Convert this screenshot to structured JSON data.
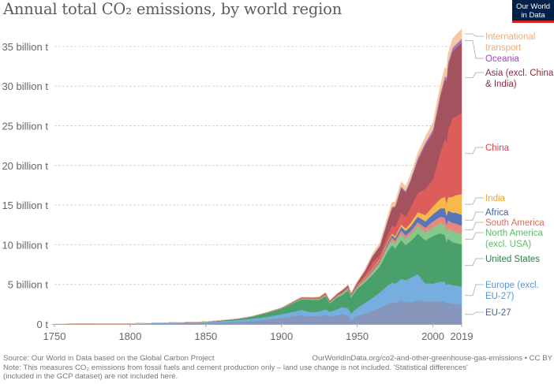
{
  "chart_data": {
    "type": "area",
    "stacked": true,
    "title": "Annual total CO₂ emissions, by world region",
    "xlabel": "",
    "ylabel": "",
    "ylim": [
      0,
      36.5
    ],
    "xlim": [
      1750,
      2019
    ],
    "grid": true,
    "unit": "billion t",
    "y_ticks": [
      {
        "value": 0,
        "label": "0 t"
      },
      {
        "value": 5,
        "label": "5 billion t"
      },
      {
        "value": 10,
        "label": "10 billion t"
      },
      {
        "value": 15,
        "label": "15 billion t"
      },
      {
        "value": 20,
        "label": "20 billion t"
      },
      {
        "value": 25,
        "label": "25 billion t"
      },
      {
        "value": 30,
        "label": "30 billion t"
      },
      {
        "value": 35,
        "label": "35 billion t"
      }
    ],
    "x_ticks": [
      {
        "value": 1750,
        "label": "1750"
      },
      {
        "value": 1800,
        "label": "1800"
      },
      {
        "value": 1850,
        "label": "1850"
      },
      {
        "value": 1900,
        "label": "1900"
      },
      {
        "value": 1950,
        "label": "1950"
      },
      {
        "value": 2000,
        "label": "2000"
      },
      {
        "value": 2019,
        "label": "2019"
      }
    ],
    "x": [
      1750,
      1800,
      1850,
      1870,
      1880,
      1890,
      1900,
      1910,
      1913,
      1918,
      1920,
      1925,
      1929,
      1932,
      1937,
      1940,
      1944,
      1946,
      1950,
      1955,
      1960,
      1965,
      1970,
      1973,
      1975,
      1979,
      1982,
      1985,
      1990,
      1995,
      2000,
      2005,
      2008,
      2009,
      2010,
      2013,
      2015,
      2019
    ],
    "legend_position": "right (inline labels)",
    "series": [
      {
        "name": "EU-27",
        "label": "EU-27",
        "color": "#8796bb",
        "label_color": "#4a6495",
        "values": [
          0.01,
          0.03,
          0.12,
          0.27,
          0.4,
          0.55,
          0.8,
          1.05,
          1.15,
          1.0,
          1.0,
          1.05,
          1.2,
          0.95,
          1.15,
          1.3,
          1.1,
          0.55,
          1.05,
          1.35,
          1.7,
          2.05,
          2.55,
          2.75,
          2.6,
          3.0,
          2.75,
          2.75,
          3.0,
          2.85,
          2.85,
          2.9,
          2.85,
          2.6,
          2.7,
          2.55,
          2.55,
          2.45
        ]
      },
      {
        "name": "Europe (excl. EU-27)",
        "label": "Europe (excl. EU-27)",
        "color": "#76aee0",
        "label_color": "#5b92c9",
        "values": [
          0.01,
          0.03,
          0.12,
          0.22,
          0.28,
          0.35,
          0.45,
          0.6,
          0.65,
          0.55,
          0.5,
          0.55,
          0.65,
          0.6,
          0.75,
          0.85,
          0.9,
          0.8,
          1.0,
          1.3,
          1.6,
          1.95,
          2.3,
          2.5,
          2.5,
          2.7,
          2.8,
          3.05,
          3.3,
          2.3,
          2.25,
          2.45,
          2.5,
          2.3,
          2.4,
          2.35,
          2.3,
          2.3
        ]
      },
      {
        "name": "United States",
        "label": "United States",
        "color": "#4aa06a",
        "label_color": "#2c7d4b",
        "values": [
          0.0,
          0.0,
          0.05,
          0.15,
          0.25,
          0.5,
          0.7,
          1.2,
          1.3,
          1.55,
          1.55,
          1.45,
          1.7,
          1.05,
          1.5,
          1.5,
          2.3,
          2.0,
          2.4,
          2.6,
          2.9,
          3.3,
          4.3,
          4.7,
          4.4,
          4.9,
          4.4,
          4.6,
          5.1,
          5.4,
          6.0,
          6.1,
          5.85,
          5.45,
          5.7,
          5.4,
          5.4,
          5.3
        ]
      },
      {
        "name": "North America (excl. USA)",
        "label": "North America (excl. USA)",
        "color": "#84c98b",
        "label_color": "#5db96a",
        "values": [
          0.0,
          0.0,
          0.0,
          0.01,
          0.02,
          0.03,
          0.05,
          0.08,
          0.09,
          0.1,
          0.1,
          0.1,
          0.12,
          0.1,
          0.12,
          0.15,
          0.18,
          0.18,
          0.2,
          0.25,
          0.3,
          0.4,
          0.55,
          0.65,
          0.65,
          0.8,
          0.8,
          0.85,
          0.95,
          1.0,
          1.1,
          1.25,
          1.3,
          1.25,
          1.3,
          1.35,
          1.35,
          1.3
        ]
      },
      {
        "name": "South America",
        "label": "South America",
        "color": "#e5897f",
        "label_color": "#d86f63",
        "values": [
          0.0,
          0.0,
          0.0,
          0.0,
          0.0,
          0.01,
          0.01,
          0.02,
          0.03,
          0.03,
          0.03,
          0.04,
          0.05,
          0.04,
          0.05,
          0.06,
          0.06,
          0.07,
          0.1,
          0.14,
          0.18,
          0.22,
          0.28,
          0.32,
          0.34,
          0.42,
          0.42,
          0.42,
          0.5,
          0.6,
          0.75,
          0.85,
          0.95,
          0.92,
          1.0,
          1.1,
          1.1,
          1.05
        ]
      },
      {
        "name": "Africa",
        "label": "Africa",
        "color": "#5675ba",
        "label_color": "#3e5fa8",
        "values": [
          0.0,
          0.0,
          0.0,
          0.0,
          0.0,
          0.01,
          0.01,
          0.02,
          0.02,
          0.02,
          0.02,
          0.03,
          0.03,
          0.03,
          0.04,
          0.05,
          0.05,
          0.06,
          0.08,
          0.11,
          0.14,
          0.17,
          0.25,
          0.3,
          0.33,
          0.45,
          0.55,
          0.6,
          0.7,
          0.8,
          0.9,
          1.05,
          1.15,
          1.15,
          1.2,
          1.3,
          1.35,
          1.4
        ]
      },
      {
        "name": "India",
        "label": "India",
        "color": "#f8b94c",
        "label_color": "#f4a823",
        "values": [
          0.0,
          0.0,
          0.0,
          0.0,
          0.0,
          0.01,
          0.01,
          0.02,
          0.03,
          0.03,
          0.03,
          0.03,
          0.04,
          0.03,
          0.04,
          0.05,
          0.05,
          0.05,
          0.06,
          0.09,
          0.12,
          0.16,
          0.2,
          0.22,
          0.25,
          0.3,
          0.35,
          0.42,
          0.58,
          0.8,
          0.98,
          1.2,
          1.45,
          1.6,
          1.68,
          2.0,
          2.2,
          2.6
        ]
      },
      {
        "name": "China",
        "label": "China",
        "color": "#dd5d5b",
        "label_color": "#d0424a",
        "values": [
          0.0,
          0.0,
          0.0,
          0.0,
          0.0,
          0.0,
          0.01,
          0.02,
          0.02,
          0.02,
          0.02,
          0.03,
          0.03,
          0.03,
          0.04,
          0.06,
          0.06,
          0.04,
          0.08,
          0.3,
          0.8,
          0.5,
          0.8,
          1.0,
          1.15,
          1.5,
          1.5,
          1.9,
          2.4,
          3.3,
          3.4,
          5.9,
          7.4,
          7.7,
          8.5,
          9.9,
          9.9,
          10.2
        ]
      },
      {
        "name": "Asia (excl. China & India)",
        "label": "Asia (excl. China & India)",
        "color": "#a3525e",
        "label_color": "#8e2a3d",
        "values": [
          0.0,
          0.0,
          0.0,
          0.0,
          0.0,
          0.01,
          0.01,
          0.05,
          0.06,
          0.06,
          0.08,
          0.1,
          0.12,
          0.1,
          0.15,
          0.2,
          0.18,
          0.1,
          0.25,
          0.5,
          0.75,
          1.05,
          1.7,
          2.2,
          2.5,
          3.1,
          3.0,
          3.3,
          4.1,
          5.5,
          5.9,
          7.0,
          7.4,
          7.6,
          8.0,
          8.4,
          8.6,
          8.9
        ]
      },
      {
        "name": "Oceania",
        "label": "Oceania",
        "color": "#a274b8",
        "label_color": "#9a4ab9",
        "values": [
          0.0,
          0.0,
          0.0,
          0.0,
          0.0,
          0.0,
          0.01,
          0.01,
          0.01,
          0.01,
          0.01,
          0.01,
          0.02,
          0.02,
          0.02,
          0.03,
          0.03,
          0.03,
          0.04,
          0.05,
          0.07,
          0.09,
          0.12,
          0.14,
          0.15,
          0.18,
          0.2,
          0.22,
          0.3,
          0.33,
          0.38,
          0.44,
          0.46,
          0.46,
          0.46,
          0.46,
          0.46,
          0.46
        ]
      },
      {
        "name": "International transport",
        "label": "International transport",
        "color": "#f6c8a0",
        "label_color": "#f1ab7a",
        "values": [
          0.0,
          0.0,
          0.0,
          0.0,
          0.0,
          0.0,
          0.02,
          0.03,
          0.04,
          0.03,
          0.04,
          0.05,
          0.05,
          0.05,
          0.06,
          0.06,
          0.06,
          0.08,
          0.1,
          0.2,
          0.3,
          0.4,
          0.5,
          0.55,
          0.55,
          0.6,
          0.6,
          0.6,
          0.65,
          0.75,
          0.9,
          1.0,
          1.1,
          1.05,
          1.1,
          1.15,
          1.2,
          1.25
        ]
      }
    ]
  },
  "header": {
    "title": "Annual total CO₂ emissions, by world region",
    "logo_line1": "Our World",
    "logo_line2": "in Data"
  },
  "footer": {
    "source": "Source: Our World in Data based on the Global Carbon Project",
    "url": "OurWorldInData.org/co2-and-other-greenhouse-gas-emissions • CC BY",
    "note_line1": "Note: This measures CO₂ emissions from fossil fuels and cement production only – land use change is not included. 'Statistical differences'",
    "note_line2": "(included in the GCP dataset) are not included here."
  }
}
